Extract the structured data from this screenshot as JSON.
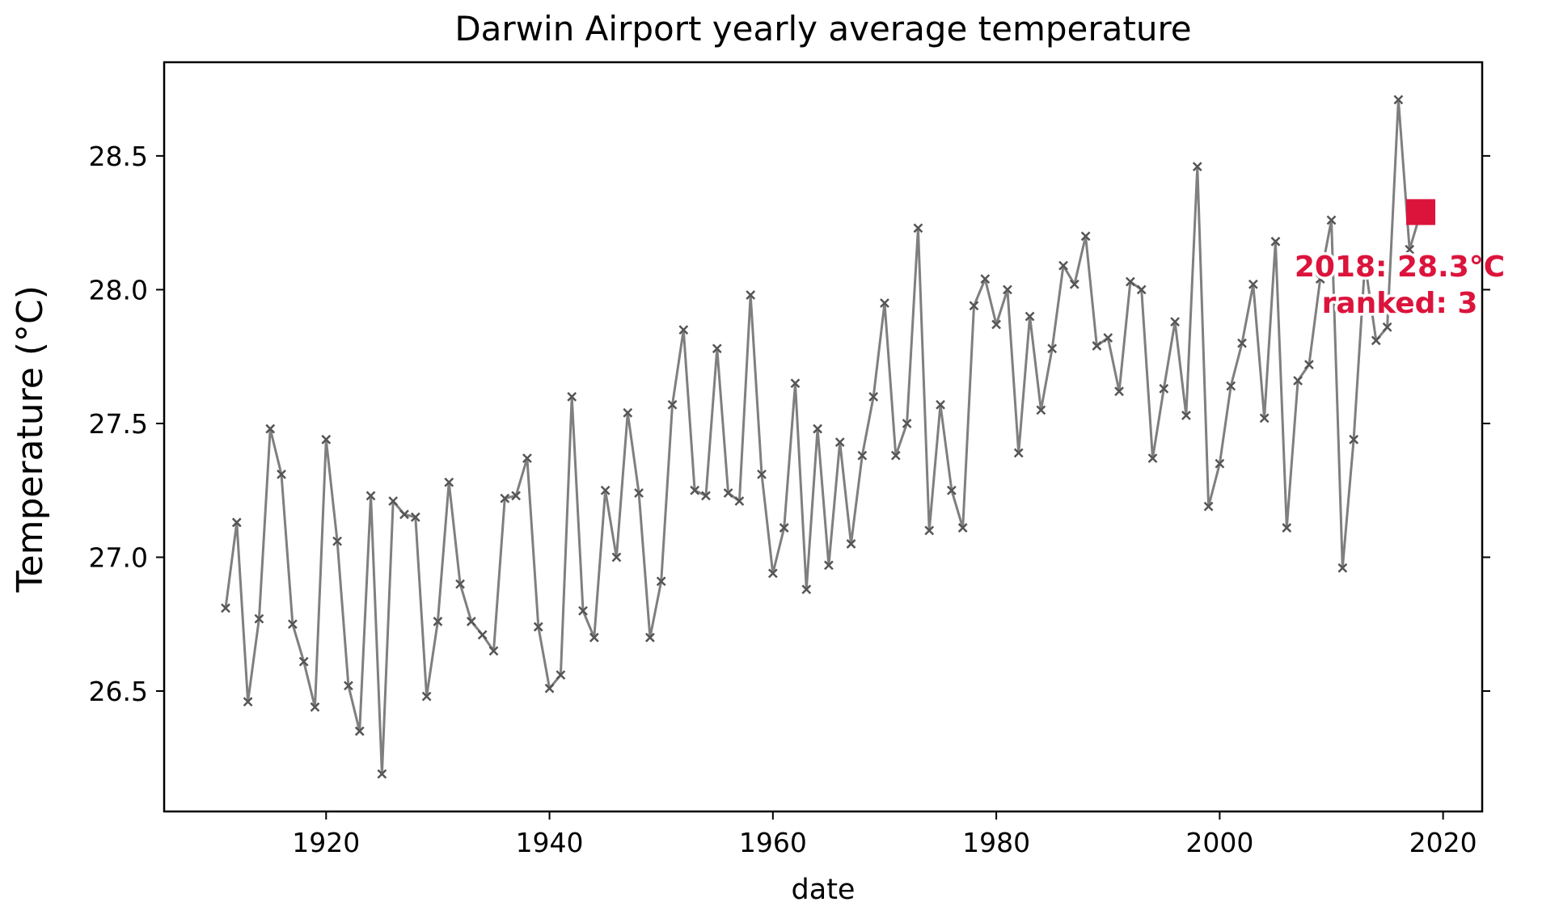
{
  "chart_data": {
    "type": "line",
    "title": "Darwin Airport yearly average temperature",
    "xlabel": "date",
    "ylabel": "Temperature (°C)",
    "xlim": [
      1905.5,
      2023.5
    ],
    "ylim": [
      26.05,
      28.85
    ],
    "x_ticks": [
      1920,
      1940,
      1960,
      1980,
      2000,
      2020
    ],
    "y_ticks": [
      26.5,
      27.0,
      27.5,
      28.0,
      28.5
    ],
    "y_tick_labels": [
      "26.5",
      "27.0",
      "27.5",
      "28.0",
      "28.5"
    ],
    "grid": false,
    "series": [
      {
        "line_color": "#7f7f7f",
        "marker": "x",
        "marker_color": "#555555",
        "x": [
          1911,
          1912,
          1913,
          1914,
          1915,
          1916,
          1917,
          1918,
          1919,
          1920,
          1921,
          1922,
          1923,
          1924,
          1925,
          1926,
          1927,
          1928,
          1929,
          1930,
          1931,
          1932,
          1933,
          1934,
          1935,
          1936,
          1937,
          1938,
          1939,
          1940,
          1941,
          1942,
          1943,
          1944,
          1945,
          1946,
          1947,
          1948,
          1949,
          1950,
          1951,
          1952,
          1953,
          1954,
          1955,
          1956,
          1957,
          1958,
          1959,
          1960,
          1961,
          1962,
          1963,
          1964,
          1965,
          1966,
          1967,
          1968,
          1969,
          1970,
          1971,
          1972,
          1973,
          1974,
          1975,
          1976,
          1977,
          1978,
          1979,
          1980,
          1981,
          1982,
          1983,
          1984,
          1985,
          1986,
          1987,
          1988,
          1989,
          1990,
          1991,
          1992,
          1993,
          1994,
          1995,
          1996,
          1997,
          1998,
          1999,
          2000,
          2001,
          2002,
          2003,
          2004,
          2005,
          2006,
          2007,
          2008,
          2009,
          2010,
          2011,
          2012,
          2013,
          2014,
          2015,
          2016,
          2017,
          2018
        ],
        "y": [
          26.81,
          27.13,
          26.46,
          26.77,
          27.48,
          27.31,
          26.75,
          26.61,
          26.44,
          27.44,
          27.06,
          26.52,
          26.35,
          27.23,
          26.19,
          27.21,
          27.16,
          27.15,
          26.48,
          26.76,
          27.28,
          26.9,
          26.76,
          26.71,
          26.65,
          27.22,
          27.23,
          27.37,
          26.74,
          26.51,
          26.56,
          27.6,
          26.8,
          26.7,
          27.25,
          27.0,
          27.54,
          27.24,
          26.7,
          26.91,
          27.57,
          27.85,
          27.25,
          27.23,
          27.78,
          27.24,
          27.21,
          27.98,
          27.31,
          26.94,
          27.11,
          27.65,
          26.88,
          27.48,
          26.97,
          27.43,
          27.05,
          27.38,
          27.6,
          27.95,
          27.38,
          27.5,
          28.23,
          27.1,
          27.57,
          27.25,
          27.11,
          27.94,
          28.04,
          27.87,
          28.0,
          27.39,
          27.9,
          27.55,
          27.78,
          28.09,
          28.02,
          28.2,
          27.79,
          27.82,
          27.62,
          28.03,
          28.0,
          27.37,
          27.63,
          27.88,
          27.53,
          28.46,
          27.19,
          27.35,
          27.64,
          27.8,
          28.02,
          27.52,
          28.18,
          27.11,
          27.66,
          27.72,
          28.04,
          28.26,
          26.96,
          27.44,
          28.1,
          27.81,
          27.86,
          28.71,
          28.15,
          28.29
        ]
      }
    ],
    "highlight": {
      "year": 2018,
      "value": 28.29,
      "color": "#dc143c",
      "label_line1": "2018: 28.3°C",
      "label_line2": "ranked: 3"
    }
  }
}
